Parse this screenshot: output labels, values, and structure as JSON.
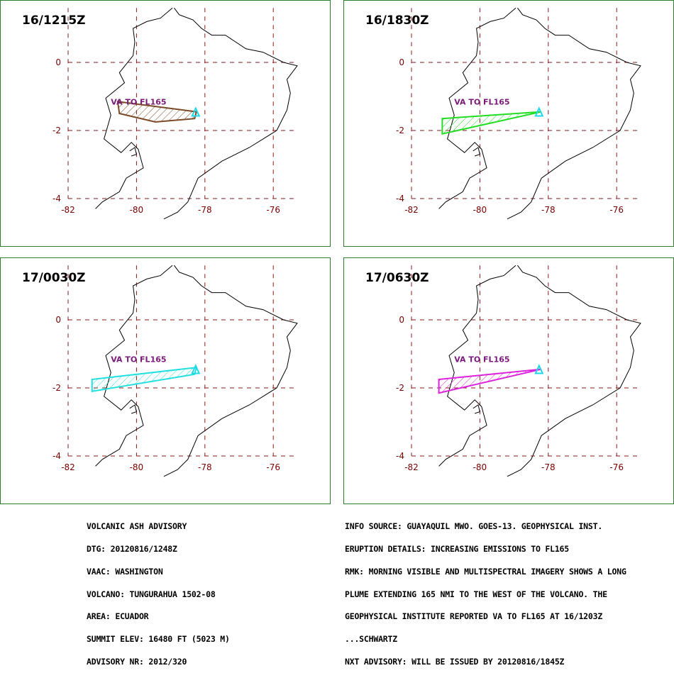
{
  "panels": [
    {
      "time": "16/1215Z",
      "plume_color": "#7b4a26",
      "plume": [
        [
          -80.55,
          -1.15
        ],
        [
          -78.25,
          -1.45
        ],
        [
          -78.3,
          -1.65
        ],
        [
          -79.45,
          -1.75
        ],
        [
          -80.5,
          -1.5
        ]
      ],
      "volcano": [
        -78.27,
        -1.47
      ]
    },
    {
      "time": "16/1830Z",
      "plume_color": "#22dd22",
      "plume": [
        [
          -78.2,
          -1.45
        ],
        [
          -81.1,
          -1.65
        ],
        [
          -81.1,
          -2.1
        ]
      ],
      "volcano": [
        -78.27,
        -1.47
      ]
    },
    {
      "time": "17/0030Z",
      "plume_color": "#22e0e0",
      "plume": [
        [
          -78.25,
          -1.4
        ],
        [
          -81.3,
          -1.75
        ],
        [
          -81.3,
          -2.1
        ],
        [
          -78.3,
          -1.6
        ]
      ],
      "volcano": [
        -78.27,
        -1.47
      ]
    },
    {
      "time": "17/0630Z",
      "plume_color": "#dd22dd",
      "plume": [
        [
          -78.2,
          -1.45
        ],
        [
          -81.2,
          -1.75
        ],
        [
          -81.2,
          -2.15
        ]
      ],
      "volcano": [
        -78.27,
        -1.47
      ]
    }
  ],
  "map": {
    "va_label": "VA TO FL165",
    "lat_ticks": [
      "0",
      "-2",
      "-4"
    ],
    "lon_ticks": [
      "-82",
      "-80",
      "-78",
      "-76"
    ],
    "grid_lats": [
      0,
      -2,
      -4
    ],
    "grid_lons": [
      -82,
      -80,
      -78,
      -76
    ],
    "grid_color": "#8b1a1a",
    "coast_color": "#000000"
  },
  "advisory_left": [
    "VOLCANIC ASH ADVISORY",
    "DTG: 20120816/1248Z",
    "VAAC: WASHINGTON",
    "VOLCANO: TUNGURAHUA 1502-08",
    "AREA: ECUADOR",
    "SUMMIT ELEV: 16480 FT (5023 M)",
    "ADVISORY NR: 2012/320"
  ],
  "advisory_right": [
    "INFO SOURCE: GUAYAQUIL MWO. GOES-13. GEOPHYSICAL INST.",
    "ERUPTION DETAILS: INCREASING EMISSIONS TO FL165",
    "RMK: MORNING VISIBLE AND MULTISPECTRAL IMAGERY SHOWS A LONG",
    "PLUME EXTENDING 165 NMI TO THE WEST OF THE VOLCANO. THE",
    "GEOPHYSICAL INSTITUTE REPORTED VA TO FL165 AT 16/1203Z",
    "...SCHWARTZ",
    "NXT ADVISORY: WILL BE ISSUED BY 20120816/1845Z"
  ]
}
